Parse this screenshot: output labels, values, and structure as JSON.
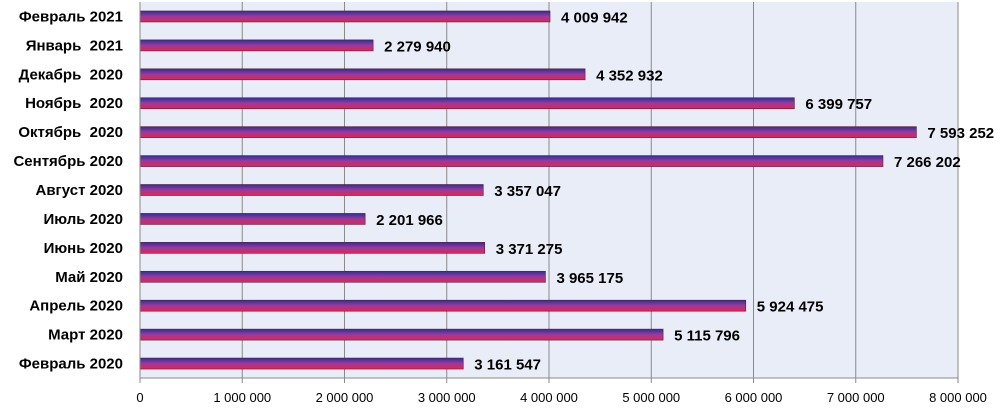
{
  "chart_data": {
    "type": "bar",
    "orientation": "horizontal",
    "categories": [
      "Февраль 2020",
      "Март 2020",
      "Апрель 2020",
      "Май 2020",
      "Июнь 2020",
      "Июль 2020",
      "Август 2020",
      "Сентябрь 2020",
      "Октябрь  2020",
      "Ноябрь  2020",
      "Декабрь  2020",
      "Январь  2021",
      "Февраль 2021"
    ],
    "values": [
      3161547,
      5115796,
      5924475,
      3965175,
      3371275,
      2201966,
      3357047,
      7266202,
      7593252,
      6399757,
      4352932,
      2279940,
      4009942
    ],
    "value_labels": [
      "3 161 547",
      "5 115 796",
      "5 924 475",
      "3 965 175",
      "3 371 275",
      "2 201 966",
      "3 357 047",
      "7 266 202",
      "7 593 252",
      "6 399 757",
      "4 352 932",
      "2 279 940",
      "4 009 942"
    ],
    "xlim": [
      0,
      8000000
    ],
    "x_ticks": [
      0,
      1000000,
      2000000,
      3000000,
      4000000,
      5000000,
      6000000,
      7000000,
      8000000
    ],
    "x_tick_labels": [
      "0",
      "1 000 000",
      "2 000 000",
      "3 000 000",
      "4 000 000",
      "5 000 000",
      "6 000 000",
      "7 000 000",
      "8 000 000"
    ],
    "title": "",
    "xlabel": "",
    "ylabel": "",
    "grid": "vertical",
    "legend": "none",
    "colors": {
      "plot_background": "#e8edf7",
      "gridline": "#8a8a8a",
      "bar_top": "#2e2f9a",
      "bar_mid": "#9b3a9e",
      "bar_bottom": "#e8234a",
      "bar_outline": "#5a1f3a"
    }
  }
}
